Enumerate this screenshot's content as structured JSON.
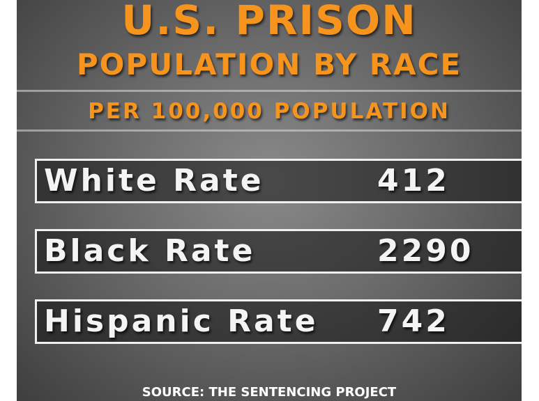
{
  "header": {
    "title": "U.S. PRISON",
    "subtitle": "POPULATION BY RACE",
    "note": "PER 100,000 POPULATION"
  },
  "rows": [
    {
      "label": "White Rate",
      "value": 412
    },
    {
      "label": "Black Rate",
      "value": 2290
    },
    {
      "label": "Hispanic Rate",
      "value": 742
    }
  ],
  "source": "SOURCE: THE SENTENCING PROJECT"
}
